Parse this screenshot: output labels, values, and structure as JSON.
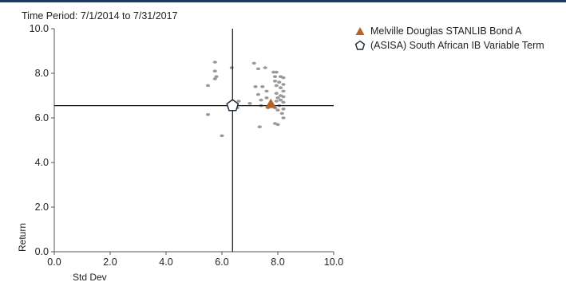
{
  "subtitle": "Time Period: 7/1/2014 to 7/31/2017",
  "chart_data": {
    "type": "scatter",
    "xlabel": "Std Dev",
    "ylabel": "Return",
    "xlim": [
      0,
      10
    ],
    "ylim": [
      0,
      10
    ],
    "x_ticks": [
      "0.0",
      "2.0",
      "4.0",
      "6.0",
      "8.0",
      "10.0"
    ],
    "y_ticks": [
      "0.0",
      "2.0",
      "4.0",
      "6.0",
      "8.0",
      "10.0"
    ],
    "grid": false,
    "legend_position": "top-right",
    "crosshair": {
      "x": 6.38,
      "y": 6.55
    },
    "series": [
      {
        "name": "Melville Douglas STANLIB Bond A",
        "marker": "triangle",
        "color": "#b5652a",
        "points": [
          [
            7.75,
            6.62
          ]
        ]
      },
      {
        "name": "(ASISA) South African IB Variable Term",
        "marker": "pentagon",
        "color": "#1e2a36",
        "points": [
          [
            6.38,
            6.55
          ]
        ]
      },
      {
        "name": "",
        "marker": "dot",
        "color": "#999999",
        "points": [
          [
            5.75,
            8.5
          ],
          [
            5.75,
            8.1
          ],
          [
            5.8,
            7.85
          ],
          [
            5.75,
            7.75
          ],
          [
            5.5,
            7.45
          ],
          [
            5.5,
            6.15
          ],
          [
            6.0,
            5.2
          ],
          [
            6.35,
            8.25
          ],
          [
            6.6,
            6.75
          ],
          [
            6.55,
            6.45
          ],
          [
            7.15,
            8.45
          ],
          [
            7.3,
            8.2
          ],
          [
            7.55,
            8.25
          ],
          [
            7.2,
            7.4
          ],
          [
            7.3,
            7.05
          ],
          [
            7.45,
            7.4
          ],
          [
            7.6,
            7.2
          ],
          [
            7.6,
            6.9
          ],
          [
            7.4,
            6.8
          ],
          [
            7.0,
            6.65
          ],
          [
            7.4,
            6.55
          ],
          [
            7.65,
            6.45
          ],
          [
            7.85,
            8.05
          ],
          [
            7.95,
            8.05
          ],
          [
            7.9,
            7.85
          ],
          [
            8.1,
            7.85
          ],
          [
            8.2,
            7.8
          ],
          [
            7.9,
            7.65
          ],
          [
            8.05,
            7.6
          ],
          [
            8.2,
            7.5
          ],
          [
            7.95,
            7.45
          ],
          [
            8.1,
            7.35
          ],
          [
            8.2,
            7.2
          ],
          [
            7.95,
            7.1
          ],
          [
            8.1,
            7.0
          ],
          [
            8.0,
            6.9
          ],
          [
            8.2,
            6.95
          ],
          [
            8.1,
            6.8
          ],
          [
            7.95,
            6.75
          ],
          [
            8.2,
            6.7
          ],
          [
            8.05,
            6.55
          ],
          [
            7.9,
            6.45
          ],
          [
            8.2,
            6.4
          ],
          [
            8.0,
            6.35
          ],
          [
            8.15,
            6.2
          ],
          [
            8.2,
            6.0
          ],
          [
            7.9,
            5.75
          ],
          [
            8.0,
            5.7
          ],
          [
            7.35,
            5.6
          ]
        ]
      }
    ]
  }
}
